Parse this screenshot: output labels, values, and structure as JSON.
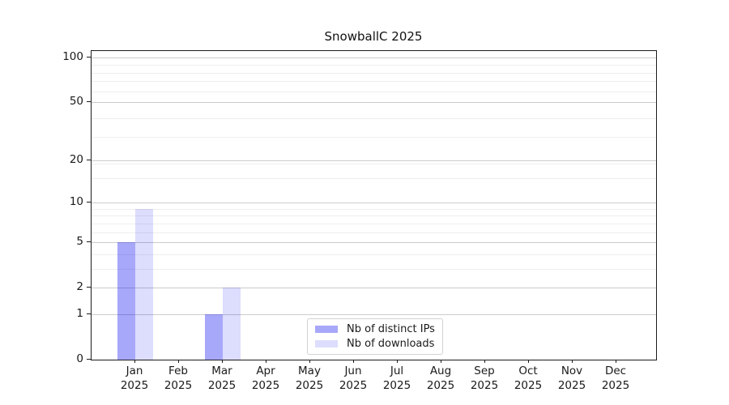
{
  "chart_data": {
    "type": "bar",
    "title": "SnowballC 2025",
    "xlabel": "",
    "ylabel": "",
    "scale": "log1p",
    "grid": true,
    "legend_position": "lower center",
    "year": "2025",
    "categories": [
      "Jan",
      "Feb",
      "Mar",
      "Apr",
      "May",
      "Jun",
      "Jul",
      "Aug",
      "Sep",
      "Oct",
      "Nov",
      "Dec"
    ],
    "series": [
      {
        "name": "Nb of distinct IPs",
        "color": "rgba(0,0,240,0.34)",
        "values": [
          5,
          0,
          1,
          0,
          0,
          0,
          0,
          0,
          0,
          0,
          0,
          0
        ]
      },
      {
        "name": "Nb of downloads",
        "color": "rgba(0,0,240,0.135)",
        "values": [
          9,
          0,
          2,
          0,
          0,
          0,
          0,
          0,
          0,
          0,
          0,
          0
        ]
      }
    ],
    "yticks": [
      0,
      1,
      2,
      5,
      10,
      20,
      50,
      100
    ],
    "minor_gridlines": [
      3,
      4,
      6,
      7,
      8,
      9,
      15,
      19,
      29,
      39,
      59,
      69,
      79,
      89,
      99
    ],
    "ylim": [
      0,
      110
    ]
  },
  "colors": {
    "distinct_ips": "rgba(0,0,240,0.34)",
    "downloads": "rgba(0,0,240,0.135)",
    "grid_major": "#cccccc",
    "grid_minor": "#eeeeee"
  }
}
